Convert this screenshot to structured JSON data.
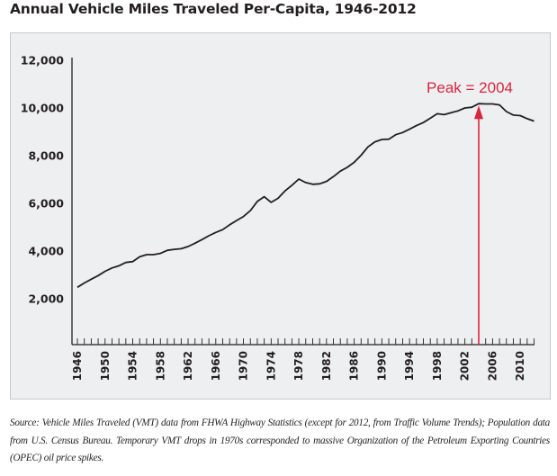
{
  "title": "Annual Vehicle Miles Traveled Per-Capita, 1946-2012",
  "caption": "Source: Vehicle Miles Traveled (VMT) data from FHWA Highway Statistics (except for 2012, from Traffic Volume Trends); Population data from U.S. Census Bureau. Temporary VMT drops in 1970s corresponded to massive Organization of the Petroleum Exporting Countries (OPEC) oil price spikes.",
  "colors": {
    "line": "#231f20",
    "annotation": "#d7263d",
    "axis": "#231f20",
    "panel": "#eeeff1"
  },
  "chart_data": {
    "type": "line",
    "title": "Annual Vehicle Miles Traveled Per-Capita, 1946-2012",
    "xlabel": "",
    "ylabel": "",
    "xlim": [
      1946,
      2012
    ],
    "ylim": [
      0,
      12000
    ],
    "grid": false,
    "yticks": [
      2000,
      4000,
      6000,
      8000,
      10000,
      12000
    ],
    "ytick_labels": [
      "2,000",
      "4,000",
      "6,000",
      "8,000",
      "10,000",
      "12,000"
    ],
    "xticks": [
      1946,
      1950,
      1954,
      1958,
      1962,
      1966,
      1970,
      1974,
      1978,
      1982,
      1986,
      1990,
      1994,
      1998,
      2002,
      2006,
      2010
    ],
    "xtick_labels": [
      "1946",
      "1950",
      "1954",
      "1958",
      "1962",
      "1966",
      "1970",
      "1974",
      "1978",
      "1982",
      "1986",
      "1990",
      "1994",
      "1998",
      "2002",
      "2006",
      "2010"
    ],
    "series": [
      {
        "name": "VMT per capita",
        "x": [
          1946,
          1947,
          1948,
          1949,
          1950,
          1951,
          1952,
          1953,
          1954,
          1955,
          1956,
          1957,
          1958,
          1959,
          1960,
          1961,
          1962,
          1963,
          1964,
          1965,
          1966,
          1967,
          1968,
          1969,
          1970,
          1971,
          1972,
          1973,
          1974,
          1975,
          1976,
          1977,
          1978,
          1979,
          1980,
          1981,
          1982,
          1983,
          1984,
          1985,
          1986,
          1987,
          1988,
          1989,
          1990,
          1991,
          1992,
          1993,
          1994,
          1995,
          1996,
          1997,
          1998,
          1999,
          2000,
          2001,
          2002,
          2003,
          2004,
          2005,
          2006,
          2007,
          2008,
          2009,
          2010,
          2011,
          2012
        ],
        "values": [
          2480,
          2660,
          2820,
          2970,
          3150,
          3290,
          3380,
          3520,
          3560,
          3760,
          3850,
          3850,
          3900,
          4030,
          4070,
          4100,
          4190,
          4330,
          4480,
          4640,
          4780,
          4900,
          5100,
          5280,
          5450,
          5700,
          6080,
          6280,
          6040,
          6210,
          6520,
          6760,
          7020,
          6870,
          6800,
          6820,
          6920,
          7120,
          7350,
          7510,
          7720,
          8020,
          8370,
          8580,
          8680,
          8690,
          8880,
          8970,
          9110,
          9260,
          9390,
          9570,
          9760,
          9720,
          9800,
          9880,
          10000,
          10030,
          10180,
          10170,
          10170,
          10130,
          9850,
          9700,
          9680,
          9550,
          9450
        ]
      }
    ],
    "annotations": [
      {
        "text": "Peak = 2004",
        "x": 2004,
        "arrow": true
      }
    ]
  }
}
